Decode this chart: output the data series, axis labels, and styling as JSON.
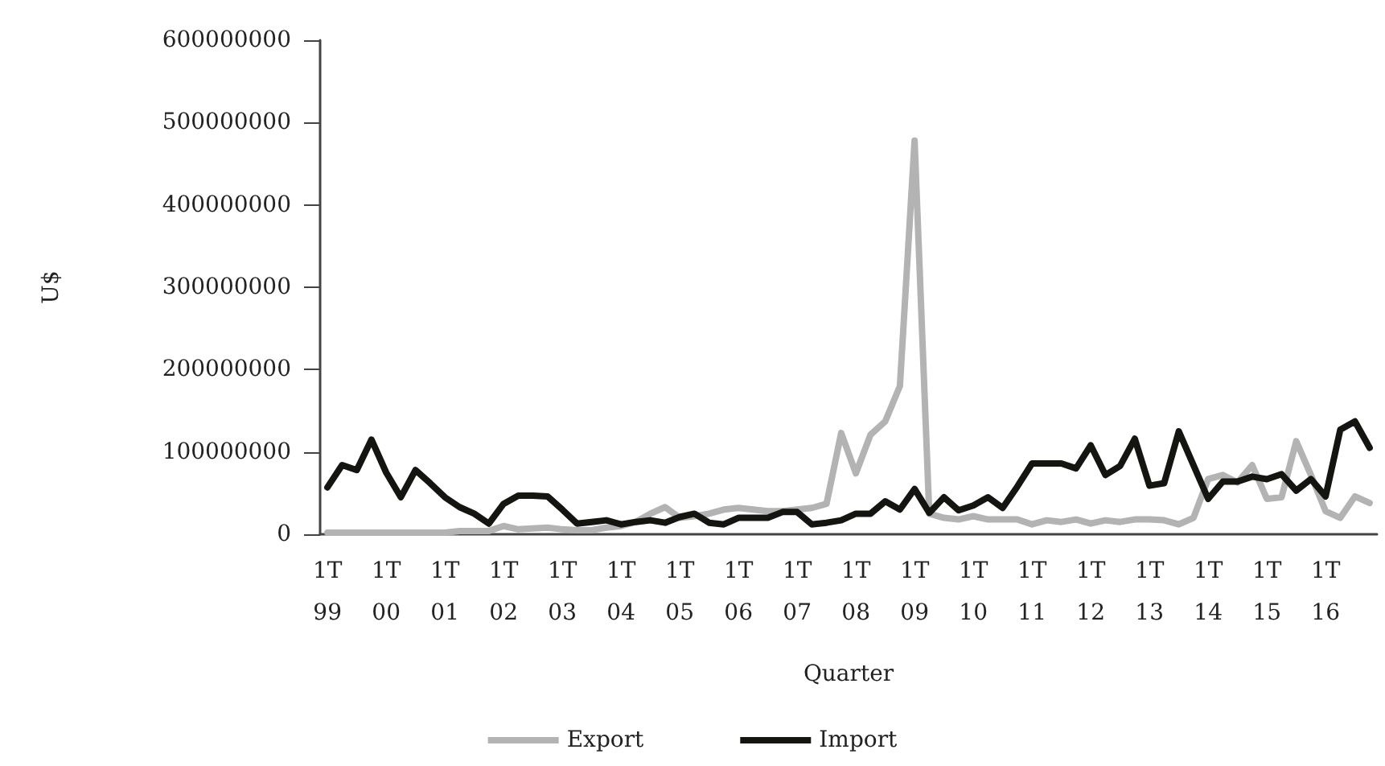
{
  "chart_data": {
    "type": "line",
    "xlabel": "Quarter",
    "ylabel": "U$",
    "categories": [
      "1T\n99",
      null,
      null,
      null,
      "1T\n00",
      null,
      null,
      null,
      "1T\n01",
      null,
      null,
      null,
      "1T\n02",
      null,
      null,
      null,
      "1T\n03",
      null,
      null,
      null,
      "1T\n04",
      null,
      null,
      null,
      "1T\n05",
      null,
      null,
      null,
      "1T\n06",
      null,
      null,
      null,
      "1T\n07",
      null,
      null,
      null,
      "1T\n08",
      null,
      null,
      null,
      "1T\n09",
      null,
      null,
      null,
      "1T\n10",
      null,
      null,
      null,
      "1T\n11",
      null,
      null,
      null,
      "1T\n12",
      null,
      null,
      null,
      "1T\n13",
      null,
      null,
      null,
      "1T\n14",
      null,
      null,
      null,
      "1T\n15",
      null,
      null,
      null,
      "1T\n16",
      null,
      null,
      null
    ],
    "series": [
      {
        "name": "Export",
        "color": "#b3b3b3",
        "values": [
          2000000,
          2000000,
          2000000,
          2000000,
          2000000,
          2000000,
          2000000,
          2000000,
          2000000,
          4000000,
          4000000,
          4000000,
          10000000,
          6000000,
          7000000,
          8000000,
          6000000,
          5000000,
          5000000,
          8000000,
          10000000,
          15000000,
          25000000,
          33000000,
          20000000,
          22000000,
          25000000,
          30000000,
          32000000,
          30000000,
          28000000,
          28000000,
          30000000,
          32000000,
          37000000,
          123000000,
          74000000,
          121000000,
          137000000,
          180000000,
          478000000,
          25000000,
          20000000,
          18000000,
          22000000,
          18000000,
          18000000,
          18000000,
          12000000,
          17000000,
          15000000,
          18000000,
          13000000,
          17000000,
          15000000,
          18000000,
          18000000,
          17000000,
          12000000,
          20000000,
          67000000,
          72000000,
          63000000,
          84000000,
          43000000,
          45000000,
          113000000,
          72000000,
          28000000,
          20000000,
          46000000,
          38000000
        ]
      },
      {
        "name": "Import",
        "color": "#141410",
        "values": [
          57000000,
          84000000,
          78000000,
          115000000,
          75000000,
          45000000,
          78000000,
          62000000,
          45000000,
          33000000,
          25000000,
          13000000,
          37000000,
          47000000,
          47000000,
          46000000,
          30000000,
          13000000,
          15000000,
          17000000,
          12000000,
          15000000,
          17000000,
          14000000,
          21000000,
          25000000,
          14000000,
          12000000,
          20000000,
          20000000,
          20000000,
          27000000,
          27000000,
          12000000,
          14000000,
          17000000,
          25000000,
          25000000,
          40000000,
          30000000,
          55000000,
          26000000,
          45000000,
          29000000,
          35000000,
          45000000,
          32000000,
          58000000,
          86000000,
          86000000,
          86000000,
          80000000,
          108000000,
          72000000,
          83000000,
          116000000,
          59000000,
          62000000,
          125000000,
          84000000,
          43000000,
          64000000,
          64000000,
          70000000,
          67000000,
          73000000,
          53000000,
          67000000,
          46000000,
          127000000,
          137000000,
          105000000
        ]
      }
    ],
    "ylim": [
      0,
      600000000
    ],
    "yticks": [
      0,
      100000000,
      200000000,
      300000000,
      400000000,
      500000000,
      600000000
    ],
    "grid": false,
    "legend": "bottom",
    "marker": "none",
    "line_style": "solid"
  }
}
